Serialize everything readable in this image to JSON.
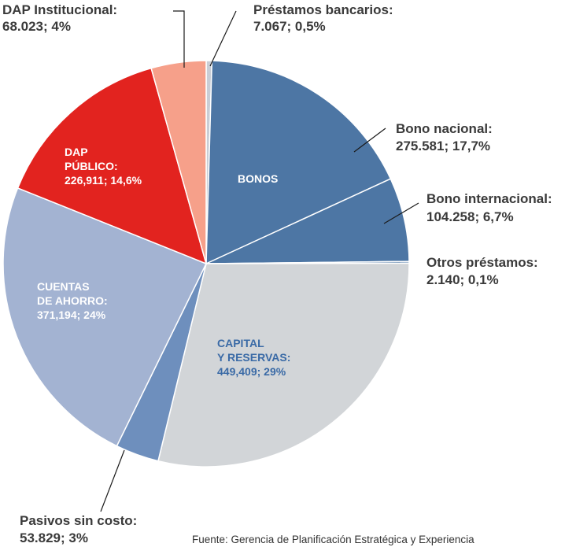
{
  "chart_data": {
    "type": "pie",
    "slices": [
      {
        "label": "Préstamos bancarios",
        "value_text": "7.067; 0,5%",
        "value": 7067,
        "percent": 0.5,
        "color": "#c9ced6"
      },
      {
        "label": "Bono nacional",
        "value_text": "275.581; 17,7%",
        "value": 275581,
        "percent": 17.7,
        "color": "#4d76a4"
      },
      {
        "label": "Bono internacional",
        "value_text": "104.258; 6,7%",
        "value": 104258,
        "percent": 6.7,
        "color": "#4d76a4"
      },
      {
        "label": "Otros préstamos",
        "value_text": "2.140; 0,1%",
        "value": 2140,
        "percent": 0.1,
        "color": "#4d76a4"
      },
      {
        "label": "CAPITAL Y RESERVAS",
        "value_text": "449,409; 29%",
        "value": 449409,
        "percent": 29,
        "color": "#d2d5d8"
      },
      {
        "label": "Pasivos sin costo",
        "value_text": "53.829; 3%",
        "value": 53829,
        "percent": 3,
        "color": "#6e8fbd"
      },
      {
        "label": "CUENTAS DE AHORRO",
        "value_text": "371,194; 24%",
        "value": 371194,
        "percent": 24,
        "color": "#a3b3d2"
      },
      {
        "label": "DAP PÚBLICO",
        "value_text": "226,911; 14,6%",
        "value": 226911,
        "percent": 14.6,
        "color": "#e2231f"
      },
      {
        "label": "DAP Institucional",
        "value_text": "68.023; 4%",
        "value": 68023,
        "percent": 4,
        "color": "#f6a08a"
      }
    ],
    "group_labels": {
      "bonos": "BONOS"
    },
    "source": "Fuente: Gerencia de Planificación Estratégica y Experiencia"
  },
  "labels": {
    "prestamos_name": "Préstamos bancarios:",
    "prestamos_value": "7.067; 0,5%",
    "bono_nac_name": "Bono nacional:",
    "bono_nac_value": "275.581; 17,7%",
    "bono_int_name": "Bono internacional:",
    "bono_int_value": "104.258; 6,7%",
    "otros_name": "Otros préstamos:",
    "otros_value": "2.140; 0,1%",
    "pasivos_name": "Pasivos sin costo:",
    "pasivos_value": "53.829; 3%",
    "dap_inst_name": "DAP Institucional:",
    "dap_inst_value": "68.023; 4%",
    "bonos": "BONOS",
    "dap_pub_1": "DAP",
    "dap_pub_2": "PÚBLICO:",
    "dap_pub_3": "226,911; 14,6%",
    "cuentas_1": "CUENTAS",
    "cuentas_2": "DE AHORRO:",
    "cuentas_3": "371,194; 24%",
    "capital_1": "CAPITAL",
    "capital_2": "Y RESERVAS:",
    "capital_3": "449,409; 29%",
    "source": "Fuente: Gerencia de Planificación Estratégica y Experiencia"
  }
}
